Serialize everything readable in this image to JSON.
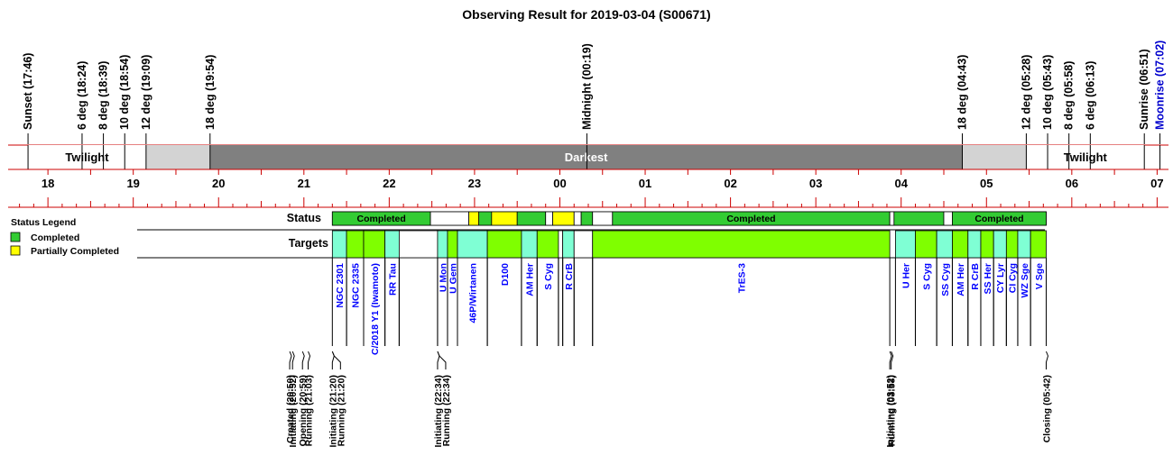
{
  "title": "Observing Result for 2019-03-04 (S00671)",
  "colors": {
    "completed": "#33cc33",
    "partial": "#ffff00",
    "target_green": "#7fff00",
    "target_cyan": "#7fffd4",
    "twilight": "#ffffff",
    "astro_twilight": "#d3d3d3",
    "darkest": "#808080",
    "axis_red": "#cc0000",
    "blue_label": "#0000ff",
    "moon_label": "#0000cd"
  },
  "chart_data": {
    "type": "timeline",
    "x_start": "17:32",
    "x_end": "07:08",
    "hour_ticks": [
      "18",
      "19",
      "20",
      "21",
      "22",
      "23",
      "00",
      "01",
      "02",
      "03",
      "04",
      "05",
      "06",
      "07"
    ],
    "sky_events": [
      {
        "label": "Sunset (17:46)",
        "time": "17:46",
        "color": "black"
      },
      {
        "label": "6 deg (18:24)",
        "time": "18:24",
        "color": "black"
      },
      {
        "label": "8 deg (18:39)",
        "time": "18:39",
        "color": "black"
      },
      {
        "label": "10 deg (18:54)",
        "time": "18:54",
        "color": "black"
      },
      {
        "label": "12 deg (19:09)",
        "time": "19:09",
        "color": "black"
      },
      {
        "label": "18 deg (19:54)",
        "time": "19:54",
        "color": "black"
      },
      {
        "label": "Midnight (00:19)",
        "time": "00:19",
        "color": "black"
      },
      {
        "label": "18 deg (04:43)",
        "time": "04:43",
        "color": "black"
      },
      {
        "label": "12 deg (05:28)",
        "time": "05:28",
        "color": "black"
      },
      {
        "label": "10 deg (05:43)",
        "time": "05:43",
        "color": "black"
      },
      {
        "label": "8 deg (05:58)",
        "time": "05:58",
        "color": "black"
      },
      {
        "label": "6 deg (06:13)",
        "time": "06:13",
        "color": "black"
      },
      {
        "label": "Sunrise (06:51)",
        "time": "06:51",
        "color": "black"
      },
      {
        "label": "Moonrise (07:02)",
        "time": "07:02",
        "color": "blue"
      }
    ],
    "sky_bands": [
      {
        "label": "Twilight",
        "start": "17:46",
        "end": "19:09",
        "kind": "twilight"
      },
      {
        "label": "",
        "start": "19:09",
        "end": "19:54",
        "kind": "astro"
      },
      {
        "label": "Darkest",
        "start": "19:54",
        "end": "04:43",
        "kind": "darkest"
      },
      {
        "label": "",
        "start": "04:43",
        "end": "05:28",
        "kind": "astro"
      },
      {
        "label": "Twilight",
        "start": "05:28",
        "end": "06:51",
        "kind": "twilight"
      }
    ],
    "status_row_label": "Status",
    "targets_row_label": "Targets",
    "status_segments": [
      {
        "start": "21:20",
        "end": "22:29",
        "status": "completed",
        "label": "Completed"
      },
      {
        "start": "22:29",
        "end": "22:56",
        "status": "none",
        "label": ""
      },
      {
        "start": "22:56",
        "end": "23:03",
        "status": "partial",
        "label": ""
      },
      {
        "start": "23:03",
        "end": "23:12",
        "status": "completed",
        "label": ""
      },
      {
        "start": "23:12",
        "end": "23:30",
        "status": "partial",
        "label": ""
      },
      {
        "start": "23:30",
        "end": "23:50",
        "status": "completed",
        "label": ""
      },
      {
        "start": "23:50",
        "end": "23:55",
        "status": "none",
        "label": ""
      },
      {
        "start": "23:55",
        "end": "00:10",
        "status": "partial",
        "label": ""
      },
      {
        "start": "00:10",
        "end": "00:15",
        "status": "none",
        "label": ""
      },
      {
        "start": "00:15",
        "end": "00:23",
        "status": "completed",
        "label": ""
      },
      {
        "start": "00:23",
        "end": "00:37",
        "status": "none",
        "label": ""
      },
      {
        "start": "00:37",
        "end": "03:52",
        "status": "completed",
        "label": "Completed"
      },
      {
        "start": "03:52",
        "end": "03:55",
        "status": "none",
        "label": ""
      },
      {
        "start": "03:55",
        "end": "04:30",
        "status": "completed",
        "label": ""
      },
      {
        "start": "04:30",
        "end": "04:36",
        "status": "none",
        "label": ""
      },
      {
        "start": "04:36",
        "end": "05:42",
        "status": "completed",
        "label": "Completed"
      }
    ],
    "targets": [
      {
        "name": "NGC 2301",
        "start": "21:20",
        "end": "21:30",
        "color": "cyan"
      },
      {
        "name": "NGC 2335",
        "start": "21:30",
        "end": "21:42",
        "color": "green"
      },
      {
        "name": "C/2018 Y1 (Iwamoto)",
        "start": "21:42",
        "end": "21:57",
        "color": "green"
      },
      {
        "name": "RR Tau",
        "start": "21:57",
        "end": "22:07",
        "color": "cyan"
      },
      {
        "name": "",
        "start": "22:07",
        "end": "22:34",
        "color": "none"
      },
      {
        "name": "U Mon",
        "start": "22:34",
        "end": "22:41",
        "color": "cyan"
      },
      {
        "name": "U Gem",
        "start": "22:41",
        "end": "22:48",
        "color": "green"
      },
      {
        "name": "46P/Wirtanen",
        "start": "22:48",
        "end": "23:09",
        "color": "cyan"
      },
      {
        "name": "D100",
        "start": "23:09",
        "end": "23:33",
        "color": "green"
      },
      {
        "name": "AM Her",
        "start": "23:33",
        "end": "23:44",
        "color": "cyan"
      },
      {
        "name": "S Cyg",
        "start": "23:44",
        "end": "23:59",
        "color": "green"
      },
      {
        "name": "",
        "start": "23:59",
        "end": "00:02",
        "color": "none"
      },
      {
        "name": "R CrB",
        "start": "00:02",
        "end": "00:10",
        "color": "cyan"
      },
      {
        "name": "",
        "start": "00:10",
        "end": "00:23",
        "color": "none"
      },
      {
        "name": "TrES-3",
        "start": "00:23",
        "end": "03:52",
        "color": "green"
      },
      {
        "name": "U Her",
        "start": "03:56",
        "end": "04:10",
        "color": "cyan"
      },
      {
        "name": "S Cyg",
        "start": "04:10",
        "end": "04:25",
        "color": "green"
      },
      {
        "name": "SS Cyg",
        "start": "04:25",
        "end": "04:36",
        "color": "cyan"
      },
      {
        "name": "AM Her",
        "start": "04:36",
        "end": "04:47",
        "color": "green"
      },
      {
        "name": "R CrB",
        "start": "04:47",
        "end": "04:56",
        "color": "cyan"
      },
      {
        "name": "SS Her",
        "start": "04:56",
        "end": "05:05",
        "color": "green"
      },
      {
        "name": "CY Lyr",
        "start": "05:05",
        "end": "05:14",
        "color": "cyan"
      },
      {
        "name": "CI Cyg",
        "start": "05:14",
        "end": "05:22",
        "color": "green"
      },
      {
        "name": "WZ Sge",
        "start": "05:22",
        "end": "05:31",
        "color": "cyan"
      },
      {
        "name": "V Sge",
        "start": "05:31",
        "end": "05:42",
        "color": "green"
      }
    ],
    "events": [
      {
        "label": "Created (20:50)",
        "time": "20:50"
      },
      {
        "label": "Initiating (20:52)",
        "time": "20:52"
      },
      {
        "label": "Opening (20:59)",
        "time": "20:59"
      },
      {
        "label": "Running (21:03)",
        "time": "21:03"
      },
      {
        "label": "Initiating (21:20)",
        "time": "21:20"
      },
      {
        "label": "Running (21:20)",
        "time": "21:20"
      },
      {
        "label": "Initiating (22:34)",
        "time": "22:34"
      },
      {
        "label": "Running (22:34)",
        "time": "22:34"
      },
      {
        "label": "Initiating (03:52)",
        "time": "03:52"
      },
      {
        "label": "Running (03:53)",
        "time": "03:53"
      },
      {
        "label": "Closing (05:42)",
        "time": "05:42"
      }
    ],
    "legend": {
      "title": "Status Legend",
      "items": [
        {
          "label": "Completed",
          "color": "#33cc33"
        },
        {
          "label": "Partially Completed",
          "color": "#ffff00"
        }
      ]
    }
  }
}
